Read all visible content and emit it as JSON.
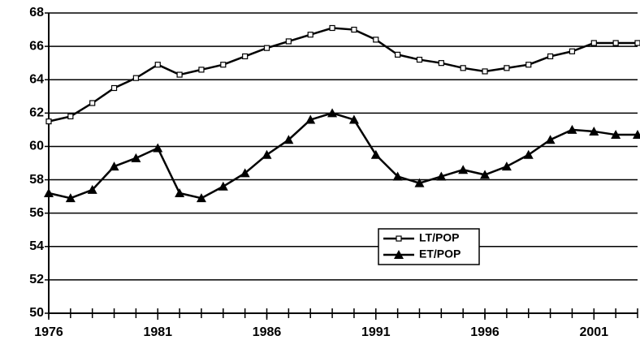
{
  "chart_data": {
    "type": "line",
    "x": [
      1976,
      1977,
      1978,
      1979,
      1980,
      1981,
      1982,
      1983,
      1984,
      1985,
      1986,
      1987,
      1988,
      1989,
      1990,
      1991,
      1992,
      1993,
      1994,
      1995,
      1996,
      1997,
      1998,
      1999,
      2000,
      2001,
      2002,
      2003
    ],
    "series": [
      {
        "name": "LT/POP",
        "color": "#000000",
        "marker": "square",
        "values": [
          61.5,
          61.8,
          62.6,
          63.5,
          64.1,
          64.9,
          64.3,
          64.6,
          64.9,
          65.4,
          65.9,
          66.3,
          66.7,
          67.1,
          67.0,
          66.4,
          65.5,
          65.2,
          65.0,
          64.7,
          64.5,
          64.7,
          64.9,
          65.4,
          65.7,
          66.2,
          66.2,
          66.2
        ]
      },
      {
        "name": "ET/POP",
        "color": "#000000",
        "marker": "triangle",
        "values": [
          57.2,
          56.9,
          57.4,
          58.8,
          59.3,
          59.9,
          57.2,
          56.9,
          57.6,
          58.4,
          59.5,
          60.4,
          61.6,
          62.0,
          61.6,
          59.5,
          58.2,
          57.8,
          58.2,
          58.6,
          58.3,
          58.8,
          59.5,
          60.4,
          61.0,
          60.9,
          60.7,
          60.7
        ]
      }
    ],
    "xlim": [
      1976,
      2003
    ],
    "xticks": [
      1976,
      1981,
      1986,
      1991,
      1996,
      2001
    ],
    "ylim": [
      50,
      68
    ],
    "yticks": [
      50,
      52,
      54,
      56,
      58,
      60,
      62,
      64,
      66,
      68
    ],
    "grid": true,
    "legend": "center-right"
  }
}
